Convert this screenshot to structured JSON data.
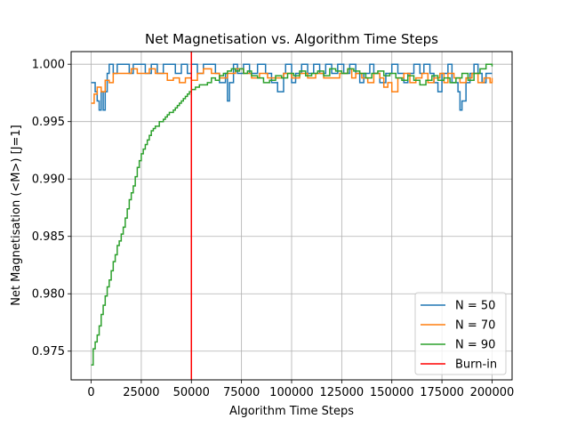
{
  "chart_data": {
    "type": "line",
    "title": "Net Magnetisation vs. Algorithm Time Steps",
    "xlabel": "Algorithm Time Steps",
    "ylabel": "Net Magnetisation (<M>) [J=1]",
    "xlim": [
      -10000,
      210000
    ],
    "ylim": [
      0.9725,
      1.0011
    ],
    "xticks": [
      0,
      25000,
      50000,
      75000,
      100000,
      125000,
      150000,
      175000,
      200000
    ],
    "yticks": [
      0.975,
      0.98,
      0.985,
      0.99,
      0.995,
      1.0
    ],
    "ytick_labels": [
      "0.975",
      "0.980",
      "0.985",
      "0.990",
      "0.995",
      "1.000"
    ],
    "grid": true,
    "legend_position": "lower-right",
    "burn_in": {
      "name": "Burn-in",
      "x": 50000,
      "color": "#ff0000"
    },
    "series": [
      {
        "name": "N = 50",
        "color": "#1f77b4",
        "x": [
          0,
          2000,
          3000,
          4000,
          5000,
          6000,
          7000,
          8000,
          9000,
          11000,
          13000,
          16000,
          19000,
          21000,
          24000,
          27000,
          30000,
          33000,
          36000,
          39000,
          42000,
          45000,
          48000,
          50000,
          53000,
          56000,
          59000,
          62000,
          64000,
          67000,
          68000,
          69000,
          71000,
          73000,
          76000,
          79000,
          83000,
          87000,
          90000,
          93000,
          96000,
          97000,
          100000,
          102000,
          105000,
          108000,
          111000,
          114000,
          117000,
          120000,
          123000,
          126000,
          129000,
          132000,
          134000,
          136000,
          139000,
          141000,
          144000,
          147000,
          150000,
          153000,
          156000,
          158000,
          161000,
          164000,
          166000,
          169000,
          171000,
          173000,
          175000,
          178000,
          180000,
          183000,
          184000,
          185000,
          187000,
          189000,
          191000,
          193000,
          195000,
          197000,
          200000
        ],
        "y": [
          0.9984,
          0.9976,
          0.9968,
          0.996,
          0.9976,
          0.996,
          0.9976,
          0.9992,
          1.0,
          0.9992,
          1.0,
          1.0,
          0.9992,
          1.0,
          1.0,
          0.9992,
          1.0,
          0.9992,
          1.0,
          1.0,
          0.9992,
          1.0,
          0.9992,
          1.0,
          0.9992,
          1.0,
          1.0,
          0.9992,
          0.9984,
          0.9992,
          0.9968,
          0.9984,
          1.0,
          0.9992,
          1.0,
          0.9992,
          1.0,
          0.9992,
          0.9984,
          0.9976,
          0.9992,
          1.0,
          0.9984,
          0.9992,
          1.0,
          0.9992,
          1.0,
          0.9992,
          1.0,
          0.9992,
          1.0,
          0.9992,
          1.0,
          0.9992,
          0.9984,
          0.9992,
          1.0,
          0.9992,
          0.9984,
          0.9992,
          1.0,
          0.9992,
          0.9984,
          0.9992,
          1.0,
          0.9992,
          1.0,
          0.9992,
          0.9984,
          0.9976,
          0.9992,
          1.0,
          0.9984,
          0.9976,
          0.996,
          0.9968,
          0.9984,
          0.9992,
          1.0,
          0.9992,
          0.9984,
          0.9992,
          0.9992
        ]
      },
      {
        "name": "N = 70",
        "color": "#ff7f0e",
        "x": [
          0,
          1500,
          3000,
          5000,
          7000,
          9000,
          11000,
          14000,
          17000,
          20000,
          23000,
          26000,
          29000,
          32000,
          35000,
          38000,
          41000,
          44000,
          47000,
          50000,
          53000,
          56000,
          60000,
          64000,
          68000,
          72000,
          76000,
          80000,
          84000,
          88000,
          92000,
          96000,
          100000,
          104000,
          108000,
          112000,
          116000,
          120000,
          124000,
          128000,
          130000,
          132000,
          135000,
          138000,
          141000,
          144000,
          146000,
          148000,
          150000,
          153000,
          156000,
          159000,
          162000,
          165000,
          168000,
          171000,
          174000,
          176000,
          178000,
          181000,
          184000,
          187000,
          190000,
          193000,
          196000,
          199000,
          200000
        ],
        "y": [
          0.9966,
          0.9974,
          0.998,
          0.9976,
          0.9986,
          0.9984,
          0.9992,
          0.9992,
          0.9992,
          0.9996,
          0.9992,
          0.9992,
          0.9996,
          0.9992,
          0.9992,
          0.9986,
          0.9988,
          0.9984,
          0.9988,
          0.9986,
          0.9992,
          0.9996,
          0.9992,
          0.9988,
          0.9992,
          0.9996,
          0.9992,
          0.9988,
          0.9992,
          0.9988,
          0.9988,
          0.9992,
          0.9988,
          0.9992,
          0.9988,
          0.9992,
          0.9988,
          0.9988,
          0.9992,
          0.9996,
          0.9988,
          0.9992,
          0.9988,
          0.9984,
          0.9992,
          0.9988,
          0.998,
          0.9984,
          0.9976,
          0.9988,
          0.9992,
          0.9984,
          0.9988,
          0.9992,
          0.9984,
          0.9988,
          0.9992,
          0.9984,
          0.9992,
          0.9988,
          0.9984,
          0.9988,
          0.9992,
          0.9984,
          0.9988,
          0.9984,
          0.9988
        ]
      },
      {
        "name": "N = 90",
        "color": "#2ca02c",
        "x": [
          0,
          1000,
          2000,
          3000,
          4000,
          5000,
          6000,
          7000,
          8000,
          9000,
          10000,
          11000,
          12000,
          13000,
          14000,
          15000,
          16000,
          17000,
          18000,
          19000,
          20000,
          21000,
          22000,
          23000,
          24000,
          25000,
          26000,
          27000,
          28000,
          29000,
          30000,
          31000,
          32000,
          33000,
          34000,
          35000,
          36000,
          37000,
          38000,
          39000,
          40000,
          41000,
          42000,
          43000,
          44000,
          45000,
          46000,
          47000,
          48000,
          49000,
          50000,
          52000,
          54000,
          56000,
          58000,
          60000,
          62000,
          64000,
          66000,
          68000,
          70000,
          72000,
          74000,
          76000,
          78000,
          80000,
          83000,
          86000,
          89000,
          92000,
          95000,
          98000,
          101000,
          104000,
          107000,
          110000,
          113000,
          116000,
          119000,
          122000,
          125000,
          128000,
          131000,
          134000,
          137000,
          140000,
          143000,
          146000,
          149000,
          152000,
          155000,
          158000,
          161000,
          164000,
          167000,
          170000,
          173000,
          176000,
          179000,
          182000,
          185000,
          188000,
          191000,
          194000,
          197000,
          200000
        ],
        "y": [
          0.9738,
          0.9752,
          0.9758,
          0.9764,
          0.9772,
          0.9782,
          0.979,
          0.9798,
          0.9806,
          0.9812,
          0.982,
          0.9828,
          0.9834,
          0.9842,
          0.9846,
          0.9852,
          0.9858,
          0.9866,
          0.9874,
          0.9882,
          0.9888,
          0.9894,
          0.9902,
          0.991,
          0.9916,
          0.9922,
          0.9926,
          0.993,
          0.9934,
          0.9938,
          0.9942,
          0.9944,
          0.9946,
          0.9946,
          0.995,
          0.995,
          0.9952,
          0.9954,
          0.9956,
          0.9958,
          0.9958,
          0.996,
          0.9962,
          0.9964,
          0.9966,
          0.9968,
          0.997,
          0.9972,
          0.9974,
          0.9976,
          0.9978,
          0.998,
          0.9982,
          0.9982,
          0.9984,
          0.9988,
          0.9986,
          0.999,
          0.9992,
          0.9994,
          0.9996,
          0.9994,
          0.9996,
          0.9992,
          0.9994,
          0.999,
          0.9988,
          0.9984,
          0.9986,
          0.999,
          0.9988,
          0.9992,
          0.999,
          0.9994,
          0.999,
          0.9992,
          0.9994,
          0.999,
          0.9996,
          0.9994,
          0.9992,
          0.9996,
          0.9994,
          0.9992,
          0.9988,
          0.9992,
          0.9994,
          0.999,
          0.9992,
          0.9988,
          0.9986,
          0.999,
          0.9986,
          0.9982,
          0.9986,
          0.999,
          0.9986,
          0.9988,
          0.9984,
          0.9988,
          0.9992,
          0.9986,
          0.9992,
          0.9996,
          1.0,
          0.9998
        ]
      }
    ]
  }
}
